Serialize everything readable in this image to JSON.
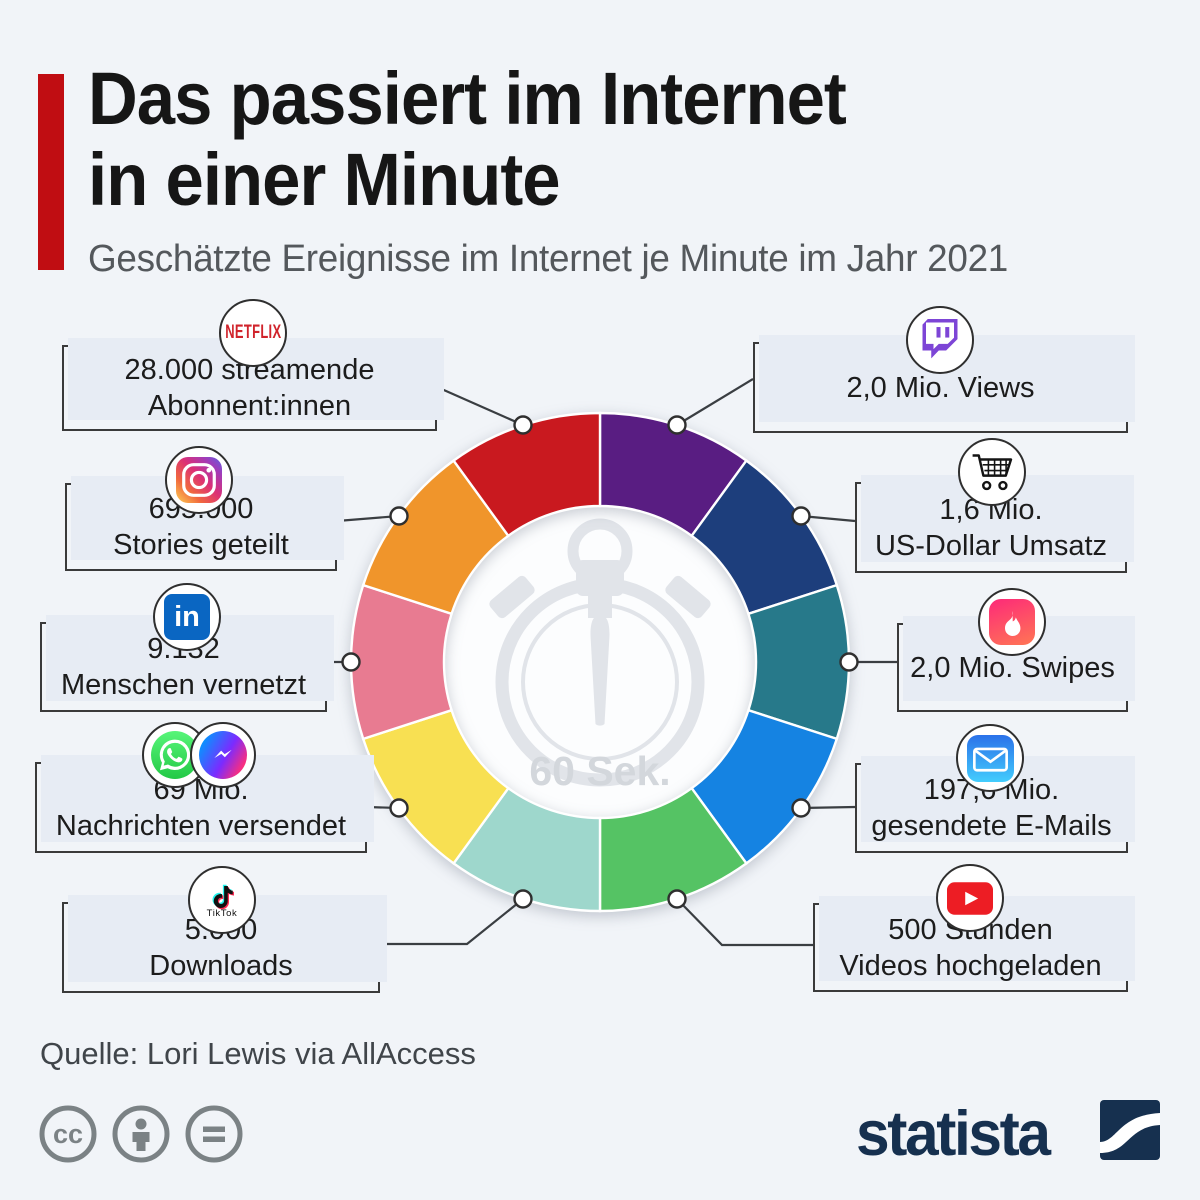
{
  "header": {
    "title_line1": "Das passiert im Internet",
    "title_line2": "in einer Minute",
    "subtitle": "Geschätzte Ereignisse im Internet je Minute im Jahr 2021"
  },
  "chart_data": {
    "type": "pie",
    "title": "Das passiert im Internet in einer Minute",
    "subtitle": "Geschätzte Ereignisse im Internet je Minute im Jahr 2021",
    "center_label": "60 Sek.",
    "legend_position": "callout-boxes around donut",
    "equal_slices": true,
    "start_angle_deg": 0,
    "clockwise": true,
    "items": [
      {
        "id": "twitch",
        "platform": "Twitch",
        "value_label": "2,0 Mio. Views",
        "line1": "2,0 Mio. Views",
        "line2": "",
        "share_pct": 10,
        "color": "#591d82",
        "side": "right"
      },
      {
        "id": "amazon",
        "platform": "Amazon",
        "value_label": "1,6 Mio. US-Dollar Umsatz",
        "line1": "1,6 Mio.",
        "line2": "US-Dollar Umsatz",
        "share_pct": 10,
        "color": "#1d3e7c",
        "side": "right"
      },
      {
        "id": "tinder",
        "platform": "Tinder",
        "value_label": "2,0 Mio. Swipes",
        "line1": "2,0 Mio. Swipes",
        "line2": "",
        "share_pct": 10,
        "color": "#27798a",
        "side": "right"
      },
      {
        "id": "email",
        "platform": "E-Mail",
        "value_label": "197,6 Mio. gesendete E-Mails",
        "line1": "197,6 Mio.",
        "line2": "gesendete E-Mails",
        "share_pct": 10,
        "color": "#1583e2",
        "side": "right"
      },
      {
        "id": "youtube",
        "platform": "YouTube",
        "value_label": "500 Stunden Videos hochgeladen",
        "line1": "500 Stunden",
        "line2": "Videos hochgeladen",
        "share_pct": 10,
        "color": "#55c364",
        "side": "right"
      },
      {
        "id": "tiktok",
        "platform": "TikTok",
        "value_label": "5.000 Downloads",
        "line1": "5.000",
        "line2": "Downloads",
        "share_pct": 10,
        "color": "#9ed7cc",
        "side": "left"
      },
      {
        "id": "whatsapp",
        "platform": "WhatsApp & Messenger",
        "value_label": "69 Mio. Nachrichten versendet",
        "line1": "69 Mio.",
        "line2": "Nachrichten versendet",
        "share_pct": 10,
        "color": "#f8e052",
        "side": "left"
      },
      {
        "id": "linkedin",
        "platform": "LinkedIn",
        "value_label": "9.132 Menschen vernetzt",
        "line1": "9.132",
        "line2": "Menschen vernetzt",
        "share_pct": 10,
        "color": "#e87b91",
        "side": "left"
      },
      {
        "id": "instagram",
        "platform": "Instagram",
        "value_label": "695.000 Stories geteilt",
        "line1": "695.000",
        "line2": "Stories geteilt",
        "share_pct": 10,
        "color": "#f0952b",
        "side": "left"
      },
      {
        "id": "netflix",
        "platform": "Netflix",
        "value_label": "28.000 streamende Abonnent:innen",
        "line1": "28.000 streamende",
        "line2": "Abonnent:innen",
        "share_pct": 10,
        "color": "#c9191f",
        "side": "left"
      }
    ]
  },
  "stopwatch": {
    "center_label": "60 Sek."
  },
  "icons": {
    "netflix_wordmark": "NETFLIX",
    "tiktok_wordmark": "TikTok",
    "linkedin_wordmark": "in"
  },
  "footer": {
    "source": "Quelle: Lori Lewis via AllAccess",
    "license": {
      "cc_label": "cc"
    },
    "brand": {
      "logo_text": "statista"
    }
  },
  "style": {
    "background": "#f1f4f8",
    "box_fill": "#e7ecf4",
    "box_border": "#3a3a3a",
    "accent_red": "#c00d12",
    "statista_navy": "#16304f",
    "stopwatch_gray": "#e1e4e9"
  }
}
